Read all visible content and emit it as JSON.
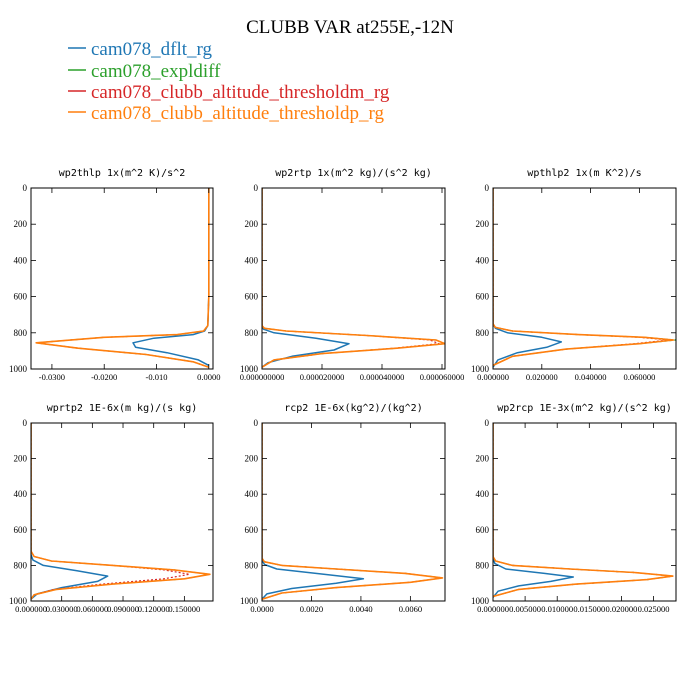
{
  "figure": {
    "title": "CLUBB VAR at255E,-12N"
  },
  "legend": [
    {
      "name": "cam078_dflt_rg",
      "color": "#1f77b4"
    },
    {
      "name": "cam078_expldiff",
      "color": "#2ca02c"
    },
    {
      "name": "cam078_clubb_altitude_thresholdm_rg",
      "color": "#d62728"
    },
    {
      "name": "cam078_clubb_altitude_thresholdp_rg",
      "color": "#ff7f0e"
    }
  ],
  "chart_data": [
    {
      "type": "line",
      "title": "wp2thlp  1x(m^2 K)/s^2",
      "xlim": [
        -0.034,
        0.0008
      ],
      "ylim": [
        1000,
        0
      ],
      "xticks": [
        -0.03,
        -0.02,
        -0.01,
        0.0
      ],
      "xtick_labels": [
        "-0.0300",
        "-0.0200",
        "-0.010",
        "0.0000"
      ],
      "yticks": [
        0,
        200,
        400,
        600,
        800,
        1000
      ],
      "ytick_labels": [
        "0",
        "200",
        "400",
        "600",
        "800",
        "1000"
      ],
      "series": [
        {
          "name": "cam078_dflt_rg",
          "x": [
            0.0,
            0.0,
            0.0,
            -0.0002,
            -0.0008,
            -0.003,
            -0.0105,
            -0.0145,
            -0.014,
            -0.008,
            -0.002,
            0.0
          ],
          "y": [
            0,
            200,
            600,
            760,
            790,
            810,
            830,
            855,
            880,
            910,
            950,
            980
          ]
        },
        {
          "name": "cam078_expldiff",
          "x": [
            0.0,
            0.0,
            0.0,
            -0.0002,
            -0.001,
            -0.006,
            -0.02,
            -0.033,
            -0.025,
            -0.012,
            -0.003,
            0.0
          ],
          "y": [
            0,
            200,
            600,
            760,
            790,
            810,
            825,
            855,
            885,
            920,
            960,
            990
          ]
        },
        {
          "name": "cam078_clubb_altitude_thresholdm_rg",
          "x": [
            0.0,
            0.0,
            0.0,
            -0.0002,
            -0.001,
            -0.006,
            -0.02,
            -0.033,
            -0.025,
            -0.012,
            -0.003,
            0.0
          ],
          "y": [
            0,
            200,
            600,
            760,
            790,
            810,
            825,
            855,
            885,
            920,
            960,
            990
          ]
        },
        {
          "name": "cam078_clubb_altitude_thresholdp_rg",
          "x": [
            0.0,
            0.0,
            0.0,
            -0.0002,
            -0.001,
            -0.006,
            -0.02,
            -0.033,
            -0.025,
            -0.012,
            -0.003,
            0.0
          ],
          "y": [
            0,
            200,
            600,
            760,
            790,
            810,
            825,
            855,
            885,
            920,
            960,
            990
          ]
        }
      ]
    },
    {
      "type": "line",
      "title": "wp2rtp  1x(m^2 kg)/(s^2 kg)",
      "xlim": [
        0,
        6.1e-05
      ],
      "ylim": [
        1000,
        0
      ],
      "xticks": [
        0,
        2e-05,
        4e-05,
        6e-05
      ],
      "xtick_labels": [
        "0.000000000",
        "0.000020000",
        "0.000040000",
        "0.000060000"
      ],
      "yticks": [
        0,
        200,
        400,
        600,
        800,
        1000
      ],
      "ytick_labels": [
        "0",
        "200",
        "400",
        "600",
        "800",
        "1000"
      ],
      "series": [
        {
          "name": "cam078_dflt_rg",
          "x": [
            0.0,
            0.0,
            5e-07,
            4e-06,
            1.8e-05,
            2.9e-05,
            2.4e-05,
            1e-05,
            2e-06,
            0.0
          ],
          "y": [
            0,
            760,
            780,
            800,
            830,
            860,
            895,
            930,
            965,
            990
          ]
        },
        {
          "name": "cam078_expldiff",
          "x": [
            0.0,
            0.0,
            8e-07,
            8e-06,
            3.5e-05,
            5.8e-05,
            6.1e-05,
            4.5e-05,
            2e-05,
            4e-06,
            0.0
          ],
          "y": [
            0,
            760,
            775,
            790,
            815,
            840,
            860,
            885,
            915,
            950,
            990
          ]
        },
        {
          "name": "cam078_clubb_altitude_thresholdm_rg",
          "x": [
            0.0,
            0.0,
            8e-07,
            8e-06,
            3.5e-05,
            5.6e-05,
            5.9e-05,
            4.4e-05,
            2e-05,
            4e-06,
            0.0
          ],
          "y": [
            0,
            760,
            775,
            790,
            815,
            840,
            860,
            885,
            915,
            950,
            990
          ]
        },
        {
          "name": "cam078_clubb_altitude_thresholdp_rg",
          "x": [
            0.0,
            0.0,
            8e-07,
            8e-06,
            3.5e-05,
            5.8e-05,
            6.1e-05,
            4.5e-05,
            2e-05,
            4e-06,
            0.0
          ],
          "y": [
            0,
            760,
            775,
            790,
            815,
            840,
            860,
            885,
            915,
            950,
            990
          ]
        }
      ]
    },
    {
      "type": "line",
      "title": "wpthlp2  1x(m K^2)/s",
      "xlim": [
        0,
        0.075
      ],
      "ylim": [
        1000,
        0
      ],
      "xticks": [
        0,
        0.02,
        0.04,
        0.06
      ],
      "xtick_labels": [
        "0.000000",
        "0.020000",
        "0.040000",
        "0.060000"
      ],
      "yticks": [
        0,
        200,
        400,
        600,
        800,
        1000
      ],
      "ytick_labels": [
        "0",
        "200",
        "400",
        "600",
        "800",
        "1000"
      ],
      "series": [
        {
          "name": "cam078_dflt_rg",
          "x": [
            0.0,
            0.0,
            0.001,
            0.006,
            0.02,
            0.028,
            0.022,
            0.01,
            0.002,
            0.0
          ],
          "y": [
            0,
            750,
            775,
            800,
            825,
            850,
            880,
            910,
            950,
            990
          ]
        },
        {
          "name": "cam078_expldiff",
          "x": [
            0.0,
            0.0,
            0.001,
            0.008,
            0.035,
            0.062,
            0.075,
            0.06,
            0.03,
            0.008,
            0.0
          ],
          "y": [
            0,
            750,
            770,
            790,
            810,
            825,
            840,
            860,
            890,
            930,
            980
          ]
        },
        {
          "name": "cam078_clubb_altitude_thresholdm_rg",
          "x": [
            0.0,
            0.0,
            0.001,
            0.008,
            0.035,
            0.06,
            0.072,
            0.058,
            0.03,
            0.008,
            0.0
          ],
          "y": [
            0,
            750,
            770,
            790,
            810,
            825,
            840,
            860,
            890,
            930,
            980
          ]
        },
        {
          "name": "cam078_clubb_altitude_thresholdp_rg",
          "x": [
            0.0,
            0.0,
            0.001,
            0.008,
            0.035,
            0.062,
            0.074,
            0.06,
            0.03,
            0.008,
            0.0
          ],
          "y": [
            0,
            750,
            770,
            790,
            810,
            825,
            840,
            860,
            890,
            930,
            980
          ]
        }
      ]
    },
    {
      "type": "line",
      "title": "wprtp2  1E-6x(m kg)/(s kg)",
      "xlim": [
        0,
        0.178
      ],
      "ylim": [
        1000,
        0
      ],
      "xticks": [
        0,
        0.03,
        0.06,
        0.09,
        0.12,
        0.15
      ],
      "xtick_labels": [
        "0.000000",
        "0.030000",
        "0.060000",
        "0.090000",
        "0.120000",
        "0.150000"
      ],
      "yticks": [
        0,
        200,
        400,
        600,
        800,
        1000
      ],
      "ytick_labels": [
        "0",
        "200",
        "400",
        "600",
        "800",
        "1000"
      ],
      "series": [
        {
          "name": "cam078_dflt_rg",
          "x": [
            0.0,
            0.0,
            0.002,
            0.012,
            0.045,
            0.075,
            0.065,
            0.03,
            0.006,
            0.0
          ],
          "y": [
            0,
            740,
            770,
            800,
            830,
            860,
            890,
            925,
            960,
            990
          ]
        },
        {
          "name": "cam078_expldiff",
          "x": [
            0.0,
            0.0,
            0.003,
            0.02,
            0.08,
            0.14,
            0.175,
            0.15,
            0.08,
            0.025,
            0.003,
            0.0
          ],
          "y": [
            0,
            720,
            750,
            775,
            800,
            825,
            850,
            875,
            905,
            935,
            965,
            990
          ]
        },
        {
          "name": "cam078_clubb_altitude_thresholdm_rg",
          "x": [
            0.0,
            0.0,
            0.003,
            0.02,
            0.08,
            0.13,
            0.155,
            0.13,
            0.07,
            0.022,
            0.003,
            0.0
          ],
          "y": [
            0,
            720,
            750,
            775,
            800,
            825,
            850,
            875,
            905,
            935,
            965,
            990
          ]
        },
        {
          "name": "cam078_clubb_altitude_thresholdp_rg",
          "x": [
            0.0,
            0.0,
            0.003,
            0.02,
            0.08,
            0.14,
            0.175,
            0.15,
            0.08,
            0.025,
            0.003,
            0.0
          ],
          "y": [
            0,
            720,
            750,
            775,
            800,
            825,
            850,
            875,
            905,
            935,
            965,
            990
          ]
        }
      ]
    },
    {
      "type": "line",
      "title": "rcp2  1E-6x(kg^2)/(kg^2)",
      "xlim": [
        0,
        0.0074
      ],
      "ylim": [
        1000,
        0
      ],
      "xticks": [
        0,
        0.002,
        0.004,
        0.006
      ],
      "xtick_labels": [
        "0.0000",
        "0.0020",
        "0.0040",
        "0.0060"
      ],
      "yticks": [
        0,
        200,
        400,
        600,
        800,
        1000
      ],
      "ytick_labels": [
        "0",
        "200",
        "400",
        "600",
        "800",
        "1000"
      ],
      "series": [
        {
          "name": "cam078_dflt_rg",
          "x": [
            0.0,
            0.0,
            0.0001,
            0.0006,
            0.0025,
            0.0041,
            0.003,
            0.0012,
            0.0002,
            0.0
          ],
          "y": [
            0,
            770,
            795,
            820,
            850,
            875,
            900,
            930,
            960,
            990
          ]
        },
        {
          "name": "cam078_expldiff",
          "x": [
            0.0,
            0.0,
            0.0001,
            0.0008,
            0.003,
            0.0058,
            0.0073,
            0.006,
            0.003,
            0.0008,
            0.0
          ],
          "y": [
            0,
            760,
            780,
            800,
            820,
            845,
            870,
            895,
            925,
            955,
            990
          ]
        },
        {
          "name": "cam078_clubb_altitude_thresholdm_rg",
          "x": [
            0.0,
            0.0,
            0.0001,
            0.0008,
            0.003,
            0.0058,
            0.0073,
            0.006,
            0.003,
            0.0008,
            0.0
          ],
          "y": [
            0,
            760,
            780,
            800,
            820,
            845,
            870,
            895,
            925,
            955,
            990
          ]
        },
        {
          "name": "cam078_clubb_altitude_thresholdp_rg",
          "x": [
            0.0,
            0.0,
            0.0001,
            0.0008,
            0.003,
            0.0058,
            0.0073,
            0.006,
            0.003,
            0.0008,
            0.0
          ],
          "y": [
            0,
            760,
            780,
            800,
            820,
            845,
            870,
            895,
            925,
            955,
            990
          ]
        }
      ]
    },
    {
      "type": "line",
      "title": "wp2rcp  1E-3x(m^2 kg)/(s^2 kg)",
      "xlim": [
        0,
        0.0285
      ],
      "ylim": [
        1000,
        0
      ],
      "xticks": [
        0,
        0.005,
        0.01,
        0.015,
        0.02,
        0.025
      ],
      "xtick_labels": [
        "0.000000",
        "0.005000",
        "0.010000",
        "0.015000",
        "0.020000",
        "0.025000"
      ],
      "yticks": [
        0,
        200,
        400,
        600,
        800,
        1000
      ],
      "ytick_labels": [
        "0",
        "200",
        "400",
        "600",
        "800",
        "1000"
      ],
      "series": [
        {
          "name": "cam078_dflt_rg",
          "x": [
            0.0,
            0.0,
            0.0003,
            0.002,
            0.008,
            0.0125,
            0.009,
            0.004,
            0.0008,
            0.0
          ],
          "y": [
            0,
            760,
            790,
            820,
            845,
            865,
            890,
            915,
            945,
            980
          ]
        },
        {
          "name": "cam078_expldiff",
          "x": [
            0.0,
            0.0,
            0.0004,
            0.003,
            0.012,
            0.022,
            0.028,
            0.024,
            0.013,
            0.004,
            0.0
          ],
          "y": [
            0,
            750,
            775,
            800,
            820,
            840,
            860,
            880,
            905,
            935,
            975
          ]
        },
        {
          "name": "cam078_clubb_altitude_thresholdm_rg",
          "x": [
            0.0,
            0.0,
            0.0004,
            0.003,
            0.012,
            0.022,
            0.028,
            0.024,
            0.013,
            0.004,
            0.0
          ],
          "y": [
            0,
            750,
            775,
            800,
            820,
            840,
            860,
            880,
            905,
            935,
            975
          ]
        },
        {
          "name": "cam078_clubb_altitude_thresholdp_rg",
          "x": [
            0.0,
            0.0,
            0.0004,
            0.003,
            0.012,
            0.022,
            0.028,
            0.024,
            0.013,
            0.004,
            0.0
          ],
          "y": [
            0,
            750,
            775,
            800,
            820,
            840,
            860,
            880,
            905,
            935,
            975
          ]
        }
      ]
    }
  ]
}
